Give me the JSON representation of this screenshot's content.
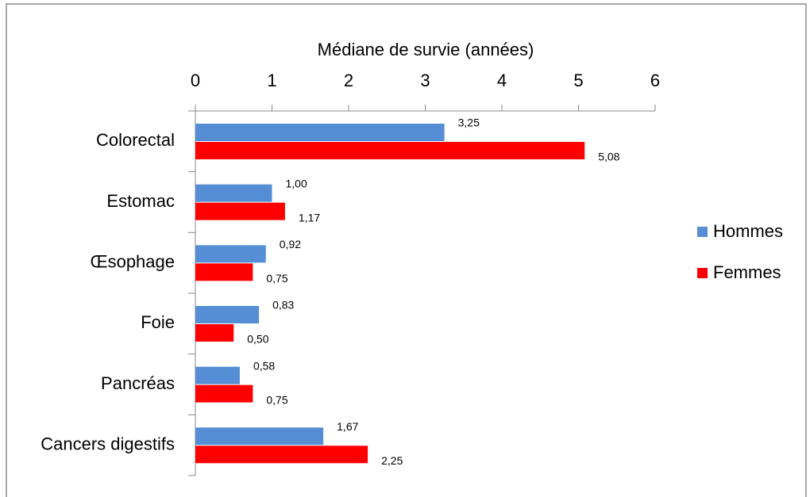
{
  "chart_data": {
    "type": "hbar",
    "xlabel": "Médiane de survie (années)",
    "categories": [
      "Colorectal",
      "Estomac",
      "Œsophage",
      "Foie",
      "Pancréas",
      "Cancers digestifs"
    ],
    "series": [
      {
        "name": "Hommes",
        "color": "#558ed5",
        "values": [
          3.25,
          1.0,
          0.92,
          0.83,
          0.58,
          1.67
        ],
        "value_labels": [
          "3,25",
          "1,00",
          "0,92",
          "0,83",
          "0,58",
          "1,67"
        ]
      },
      {
        "name": "Femmes",
        "color": "#ff0000",
        "values": [
          5.08,
          1.17,
          0.75,
          0.5,
          0.75,
          2.25
        ],
        "value_labels": [
          "5,08",
          "1,17",
          "0,75",
          "0,50",
          "0,75",
          "2,25"
        ]
      }
    ],
    "xlim": [
      0,
      6
    ],
    "xticks": [
      0,
      1,
      2,
      3,
      4,
      5,
      6
    ],
    "legend": "right"
  }
}
